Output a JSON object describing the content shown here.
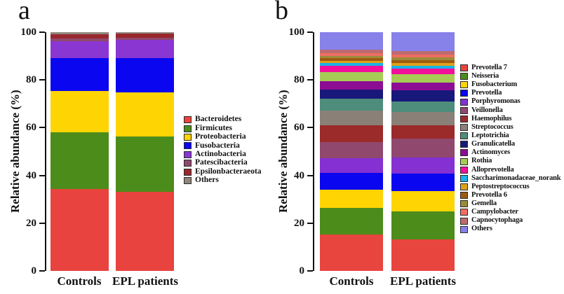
{
  "chart_data": [
    {
      "type": "bar",
      "stacked": true,
      "panel_label": "a",
      "ylabel": "Relative abundance (%)",
      "ylim": [
        0,
        100
      ],
      "yticks": [
        0,
        20,
        40,
        60,
        80,
        100
      ],
      "grid": false,
      "legend_position": "right",
      "categories": [
        "Controls",
        "EPL patients"
      ],
      "series": [
        {
          "name": "Bacteroidetes",
          "color": "#e8433e",
          "values": [
            34.2,
            33.2
          ]
        },
        {
          "name": "Firmicutes",
          "color": "#4c8c1a",
          "values": [
            23.8,
            23.2
          ]
        },
        {
          "name": "Proteobacteria",
          "color": "#fed403",
          "values": [
            17.5,
            18.5
          ]
        },
        {
          "name": "Fusobacteria",
          "color": "#0a06ef",
          "values": [
            13.5,
            14.2
          ]
        },
        {
          "name": "Actinobacteria",
          "color": "#8936d3",
          "values": [
            7.3,
            7.8
          ]
        },
        {
          "name": "Patescibacteria",
          "color": "#8f4a6d",
          "values": [
            1.1,
            0.9
          ]
        },
        {
          "name": "Epsilonbacteraeota",
          "color": "#99282e",
          "values": [
            1.8,
            1.7
          ]
        },
        {
          "name": "Others",
          "color": "#8f867c",
          "values": [
            0.8,
            0.5
          ]
        }
      ]
    },
    {
      "type": "bar",
      "stacked": true,
      "panel_label": "b",
      "ylabel": "Relative abundance (%)",
      "ylim": [
        0,
        100
      ],
      "yticks": [
        0,
        20,
        40,
        60,
        80,
        100
      ],
      "grid": false,
      "legend_position": "right",
      "categories": [
        "Controls",
        "EPL patients"
      ],
      "series": [
        {
          "name": "Prevotella 7",
          "color": "#e8453f",
          "values": [
            15.3,
            13.3
          ]
        },
        {
          "name": "Neisseria",
          "color": "#4c8c1a",
          "values": [
            11.2,
            11.5
          ]
        },
        {
          "name": "Fusobacterium",
          "color": "#fed403",
          "values": [
            7.5,
            8.5
          ]
        },
        {
          "name": "Prevotella",
          "color": "#0a06ef",
          "values": [
            7.0,
            7.3
          ]
        },
        {
          "name": "Porphyromonas",
          "color": "#8430d2",
          "values": [
            6.2,
            6.9
          ]
        },
        {
          "name": "Veillonella",
          "color": "#90486e",
          "values": [
            6.8,
            7.9
          ]
        },
        {
          "name": "Haemophilus",
          "color": "#9b2a2b",
          "values": [
            7.0,
            5.6
          ]
        },
        {
          "name": "Streptococcus",
          "color": "#8a8078",
          "values": [
            6.0,
            5.5
          ]
        },
        {
          "name": "Leptotrichia",
          "color": "#4e8d7c",
          "values": [
            5.0,
            4.5
          ]
        },
        {
          "name": "Granulicatella",
          "color": "#18187a",
          "values": [
            3.8,
            4.5
          ]
        },
        {
          "name": "Actinomyces",
          "color": "#8c0d93",
          "values": [
            3.7,
            3.3
          ]
        },
        {
          "name": "Rothia",
          "color": "#a6cc55",
          "values": [
            3.7,
            3.7
          ]
        },
        {
          "name": "Alloprevotella",
          "color": "#f2109b",
          "values": [
            2.6,
            2.3
          ]
        },
        {
          "name": "Saccharimonadaceae_norank",
          "color": "#1ab2e8",
          "values": [
            1.2,
            1.2
          ]
        },
        {
          "name": "Peptostreptococcus",
          "color": "#dfa019",
          "values": [
            1.0,
            1.1
          ]
        },
        {
          "name": "Prevotella 6",
          "color": "#9e5a10",
          "values": [
            1.2,
            1.3
          ]
        },
        {
          "name": "Gemella",
          "color": "#9a8b3a",
          "values": [
            0.8,
            0.9
          ]
        },
        {
          "name": "Campylobacter",
          "color": "#ee6e62",
          "values": [
            1.2,
            1.2
          ]
        },
        {
          "name": "Capnocytophaga",
          "color": "#bc6b6f",
          "values": [
            1.6,
            1.5
          ]
        },
        {
          "name": "Others",
          "color": "#8781ea",
          "values": [
            7.2,
            8.0
          ]
        }
      ]
    }
  ]
}
